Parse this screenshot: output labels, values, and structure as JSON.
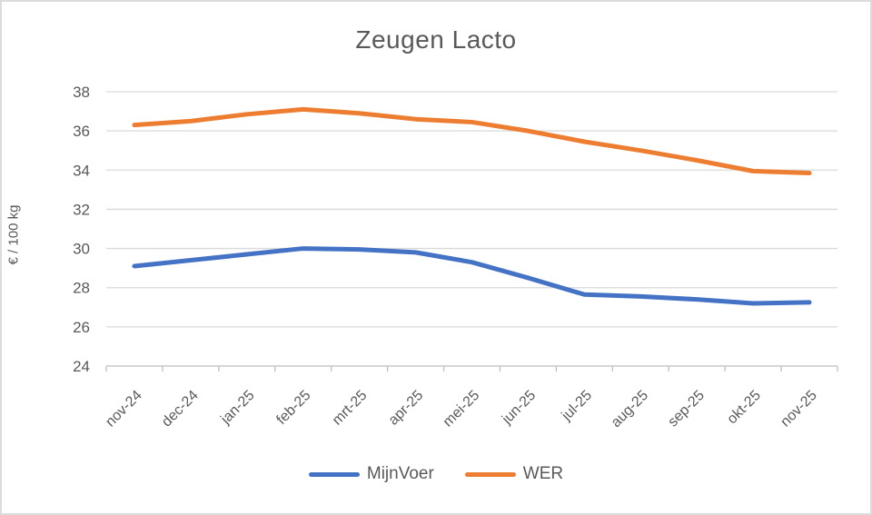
{
  "frame": {
    "background_color": "#ffffff",
    "border_color": "#dcdcdc"
  },
  "chart_data": {
    "type": "line",
    "title": "Zeugen Lacto",
    "xlabel": "",
    "ylabel": "€ / 100 kg",
    "categories": [
      "nov-24",
      "dec-24",
      "jan-25",
      "feb-25",
      "mrt-25",
      "apr-25",
      "mei-25",
      "jun-25",
      "jul-25",
      "aug-25",
      "sep-25",
      "okt-25",
      "nov-25"
    ],
    "series": [
      {
        "name": "MijnVoer",
        "color": "#4472C4",
        "values": [
          29.1,
          29.4,
          29.7,
          30.0,
          29.95,
          29.8,
          29.3,
          28.5,
          27.65,
          27.55,
          27.4,
          27.2,
          27.25
        ]
      },
      {
        "name": "WER",
        "color": "#ED7D31",
        "values": [
          36.3,
          36.5,
          36.85,
          37.1,
          36.9,
          36.6,
          36.45,
          36.0,
          35.45,
          35.0,
          34.5,
          33.95,
          33.85
        ]
      }
    ],
    "ylim": [
      24,
      38
    ],
    "yticks": [
      24,
      26,
      28,
      30,
      32,
      34,
      36,
      38
    ],
    "grid": true,
    "legend_position": "bottom",
    "gridline_color": "#d9d9d9",
    "axis_color": "#bfbfbf",
    "text_color": "#595959"
  }
}
